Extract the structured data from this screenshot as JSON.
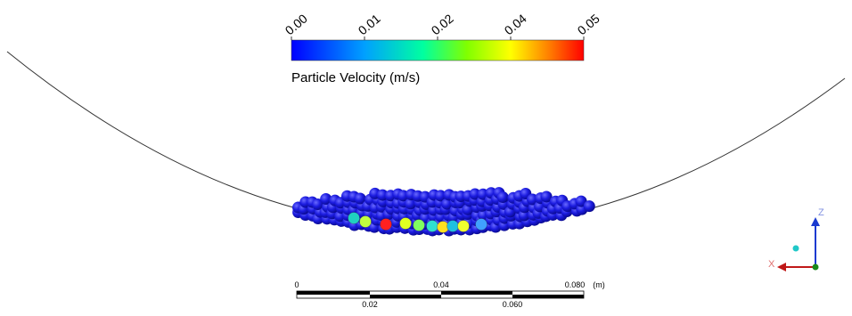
{
  "colorbar": {
    "title": "Particle Velocity (m/s)",
    "ticks": [
      "0.00",
      "0.01",
      "0.02",
      "0.04",
      "0.05"
    ]
  },
  "scale_bar": {
    "top_labels": [
      "0",
      "0.04",
      "0.080",
      "(m)"
    ],
    "bottom_labels": [
      "0.02",
      "0.060"
    ]
  },
  "triad": {
    "z": "Z",
    "x": "X"
  }
}
